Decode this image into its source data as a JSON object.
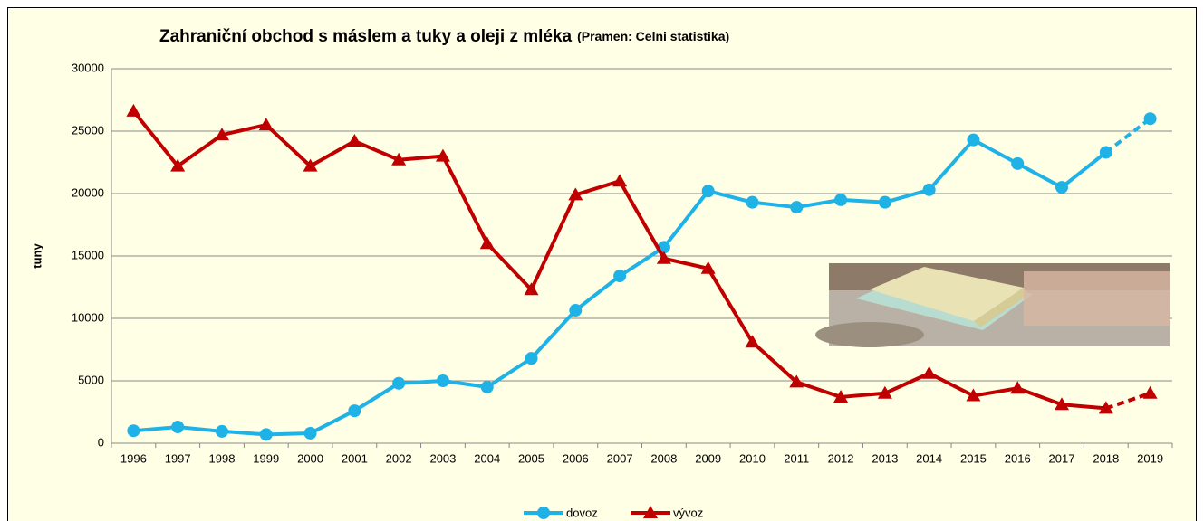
{
  "chart_data": {
    "type": "line",
    "title": "Zahraniční obchod s máslem a tuky a oleji z mléka",
    "subtitle": "(Pramen: Celni statistika)",
    "y_label": "tuny",
    "categories": [
      "1996",
      "1997",
      "1998",
      "1999",
      "2000",
      "2001",
      "2002",
      "2003",
      "2004",
      "2005",
      "2006",
      "2007",
      "2008",
      "2009",
      "2010",
      "2011",
      "2012",
      "2013",
      "2014",
      "2015",
      "2016",
      "2017",
      "2018",
      "2019"
    ],
    "series": [
      {
        "name": "dovoz",
        "color": "#1fb2e6",
        "marker": "circle",
        "values": [
          1000,
          1300,
          950,
          700,
          800,
          2600,
          4800,
          5000,
          4500,
          6800,
          10650,
          13400,
          15700,
          20200,
          19300,
          18900,
          19500,
          19300,
          20300,
          24300,
          22400,
          20500,
          23300,
          26000
        ]
      },
      {
        "name": "vývoz",
        "color": "#c00000",
        "marker": "triangle",
        "values": [
          26600,
          22200,
          24700,
          25500,
          22200,
          24200,
          22700,
          23000,
          16000,
          12300,
          19900,
          21000,
          14800,
          14000,
          8100,
          4900,
          3700,
          4000,
          5600,
          3800,
          4400,
          3100,
          2800,
          4000
        ]
      }
    ],
    "ylim": [
      0,
      30000
    ],
    "yticks": [
      0,
      5000,
      10000,
      15000,
      20000,
      25000,
      30000
    ],
    "grid": true,
    "last_segment_dashed": true,
    "legend": "bottom"
  }
}
